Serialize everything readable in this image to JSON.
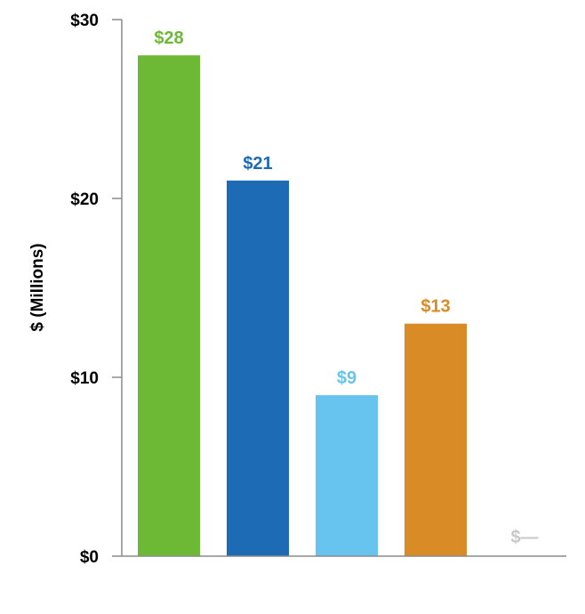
{
  "chart_data": {
    "type": "bar",
    "title": "",
    "xlabel": "",
    "ylabel": "$ (Millions)",
    "ylim": [
      0,
      30
    ],
    "yticks": [
      0,
      10,
      20,
      30
    ],
    "ytick_labels": [
      "$0",
      "$10",
      "$20",
      "$30"
    ],
    "grid": false,
    "legend": "none",
    "values": [
      28,
      21,
      9,
      13,
      0
    ],
    "data_labels": [
      "$28",
      "$21",
      "$9",
      "$13",
      "$—"
    ],
    "colors": [
      "#6db935",
      "#1d6ab5",
      "#66c4ee",
      "#d98b25",
      "#c8c8c8"
    ]
  }
}
